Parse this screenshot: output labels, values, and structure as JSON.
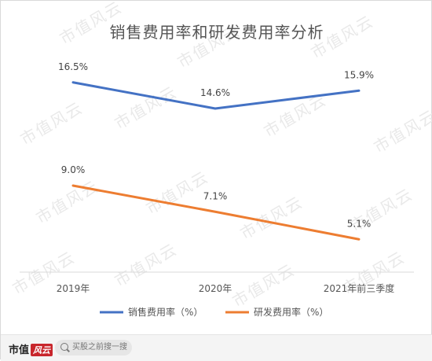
{
  "chart_data": {
    "type": "line",
    "title": "销售费用率和研发费用率分析",
    "categories": [
      "2019年",
      "2020年",
      "2021年前三季度"
    ],
    "series": [
      {
        "name": "销售费用率（%）",
        "color": "#4472c4",
        "values": [
          16.5,
          14.6,
          15.9
        ],
        "labels": [
          "16.5%",
          "14.6%",
          "15.9%"
        ]
      },
      {
        "name": "研发费用率（%）",
        "color": "#ed7d31",
        "values": [
          9.0,
          7.1,
          5.1
        ],
        "labels": [
          "9.0%",
          "7.1%",
          "5.1%"
        ]
      }
    ],
    "grid": false,
    "legend": "bottom"
  },
  "watermark": {
    "text": "市值风云"
  },
  "footer": {
    "brand": "市值",
    "brand_mark": "风云",
    "search_placeholder": "买股之前搜一搜",
    "search_icon": "search-icon"
  }
}
